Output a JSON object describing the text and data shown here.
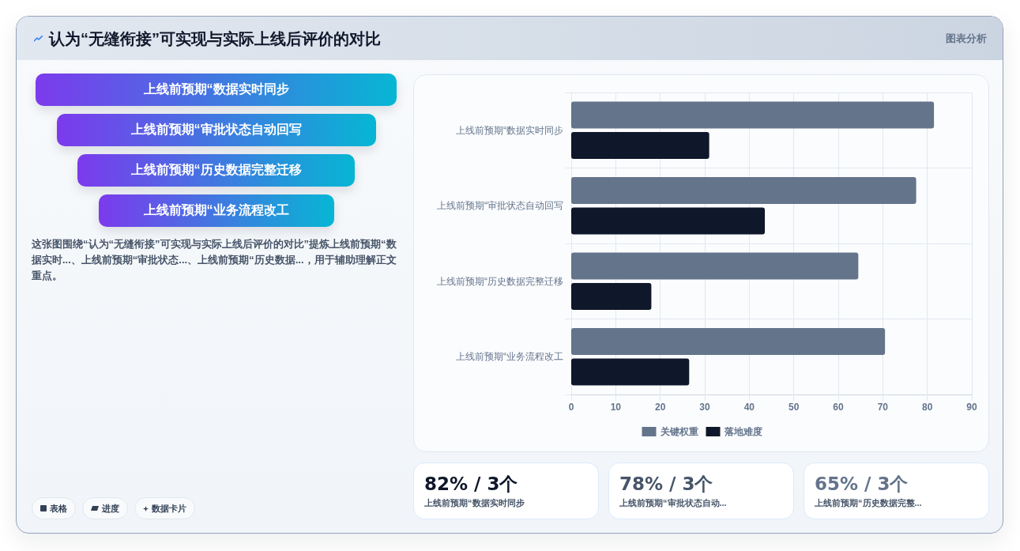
{
  "chart_data": {
    "type": "bar",
    "title": "认为“无缝衔接”可实现与实际上线后评价的对比",
    "orientation": "horizontal",
    "categories": [
      "上线前预期“数据实时同步",
      "上线前预期“审批状态自动回写",
      "上线前预期“历史数据完整迁移",
      "上线前预期“业务流程改工"
    ],
    "series": [
      {
        "name": "关键权重",
        "color": "#64748b",
        "values": [
          81.5,
          77.5,
          64.5,
          70.5
        ]
      },
      {
        "name": "落地难度",
        "color": "#0f172a",
        "values": [
          31,
          43.5,
          18,
          26.5
        ]
      }
    ],
    "xlim": [
      0,
      90
    ],
    "xticks": [
      0,
      10,
      20,
      30,
      40,
      50,
      60,
      70,
      80,
      90
    ],
    "grid": true,
    "legend": "bottom",
    "annotations": [
      "图表分析",
      "这张图围绕“认为“无缝衔接”可实现与实际上线后评价的对比”提炼上线前预期“数据实时...、上线前预期“审批状态...、上线前预期“历史数据...，用于辅助理解正文重点。",
      "82% / 3个",
      "上线前预期“数据实时同步",
      "78% / 3个",
      "上线前预期“审批状态自动...",
      "65% / 3个",
      "上线前预期“历史数据完整...",
      "表格",
      "进度",
      "数据卡片"
    ]
  }
}
